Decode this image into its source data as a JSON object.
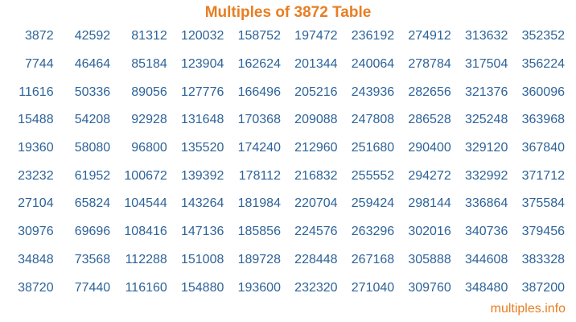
{
  "header": {
    "title": "Multiples of 3872 Table"
  },
  "table": {
    "description": "multiples-of-3872-grid",
    "rows": [
      [
        "3872",
        "42592",
        "81312",
        "120032",
        "158752",
        "197472",
        "236192",
        "274912",
        "313632",
        "352352"
      ],
      [
        "7744",
        "46464",
        "85184",
        "123904",
        "162624",
        "201344",
        "240064",
        "278784",
        "317504",
        "356224"
      ],
      [
        "11616",
        "50336",
        "89056",
        "127776",
        "166496",
        "205216",
        "243936",
        "282656",
        "321376",
        "360096"
      ],
      [
        "15488",
        "54208",
        "92928",
        "131648",
        "170368",
        "209088",
        "247808",
        "286528",
        "325248",
        "363968"
      ],
      [
        "19360",
        "58080",
        "96800",
        "135520",
        "174240",
        "212960",
        "251680",
        "290400",
        "329120",
        "367840"
      ],
      [
        "23232",
        "61952",
        "100672",
        "139392",
        "178112",
        "216832",
        "255552",
        "294272",
        "332992",
        "371712"
      ],
      [
        "27104",
        "65824",
        "104544",
        "143264",
        "181984",
        "220704",
        "259424",
        "298144",
        "336864",
        "375584"
      ],
      [
        "30976",
        "69696",
        "108416",
        "147136",
        "185856",
        "224576",
        "263296",
        "302016",
        "340736",
        "379456"
      ],
      [
        "34848",
        "73568",
        "112288",
        "151008",
        "189728",
        "228448",
        "267168",
        "305888",
        "344608",
        "383328"
      ],
      [
        "38720",
        "77440",
        "116160",
        "154880",
        "193600",
        "232320",
        "271040",
        "309760",
        "348480",
        "387200"
      ]
    ]
  },
  "footer": {
    "site_label": "multiples.info"
  },
  "colors": {
    "accent_orange": "#E87E23",
    "number_blue": "#2D6399",
    "background": "#FFFFFF"
  }
}
